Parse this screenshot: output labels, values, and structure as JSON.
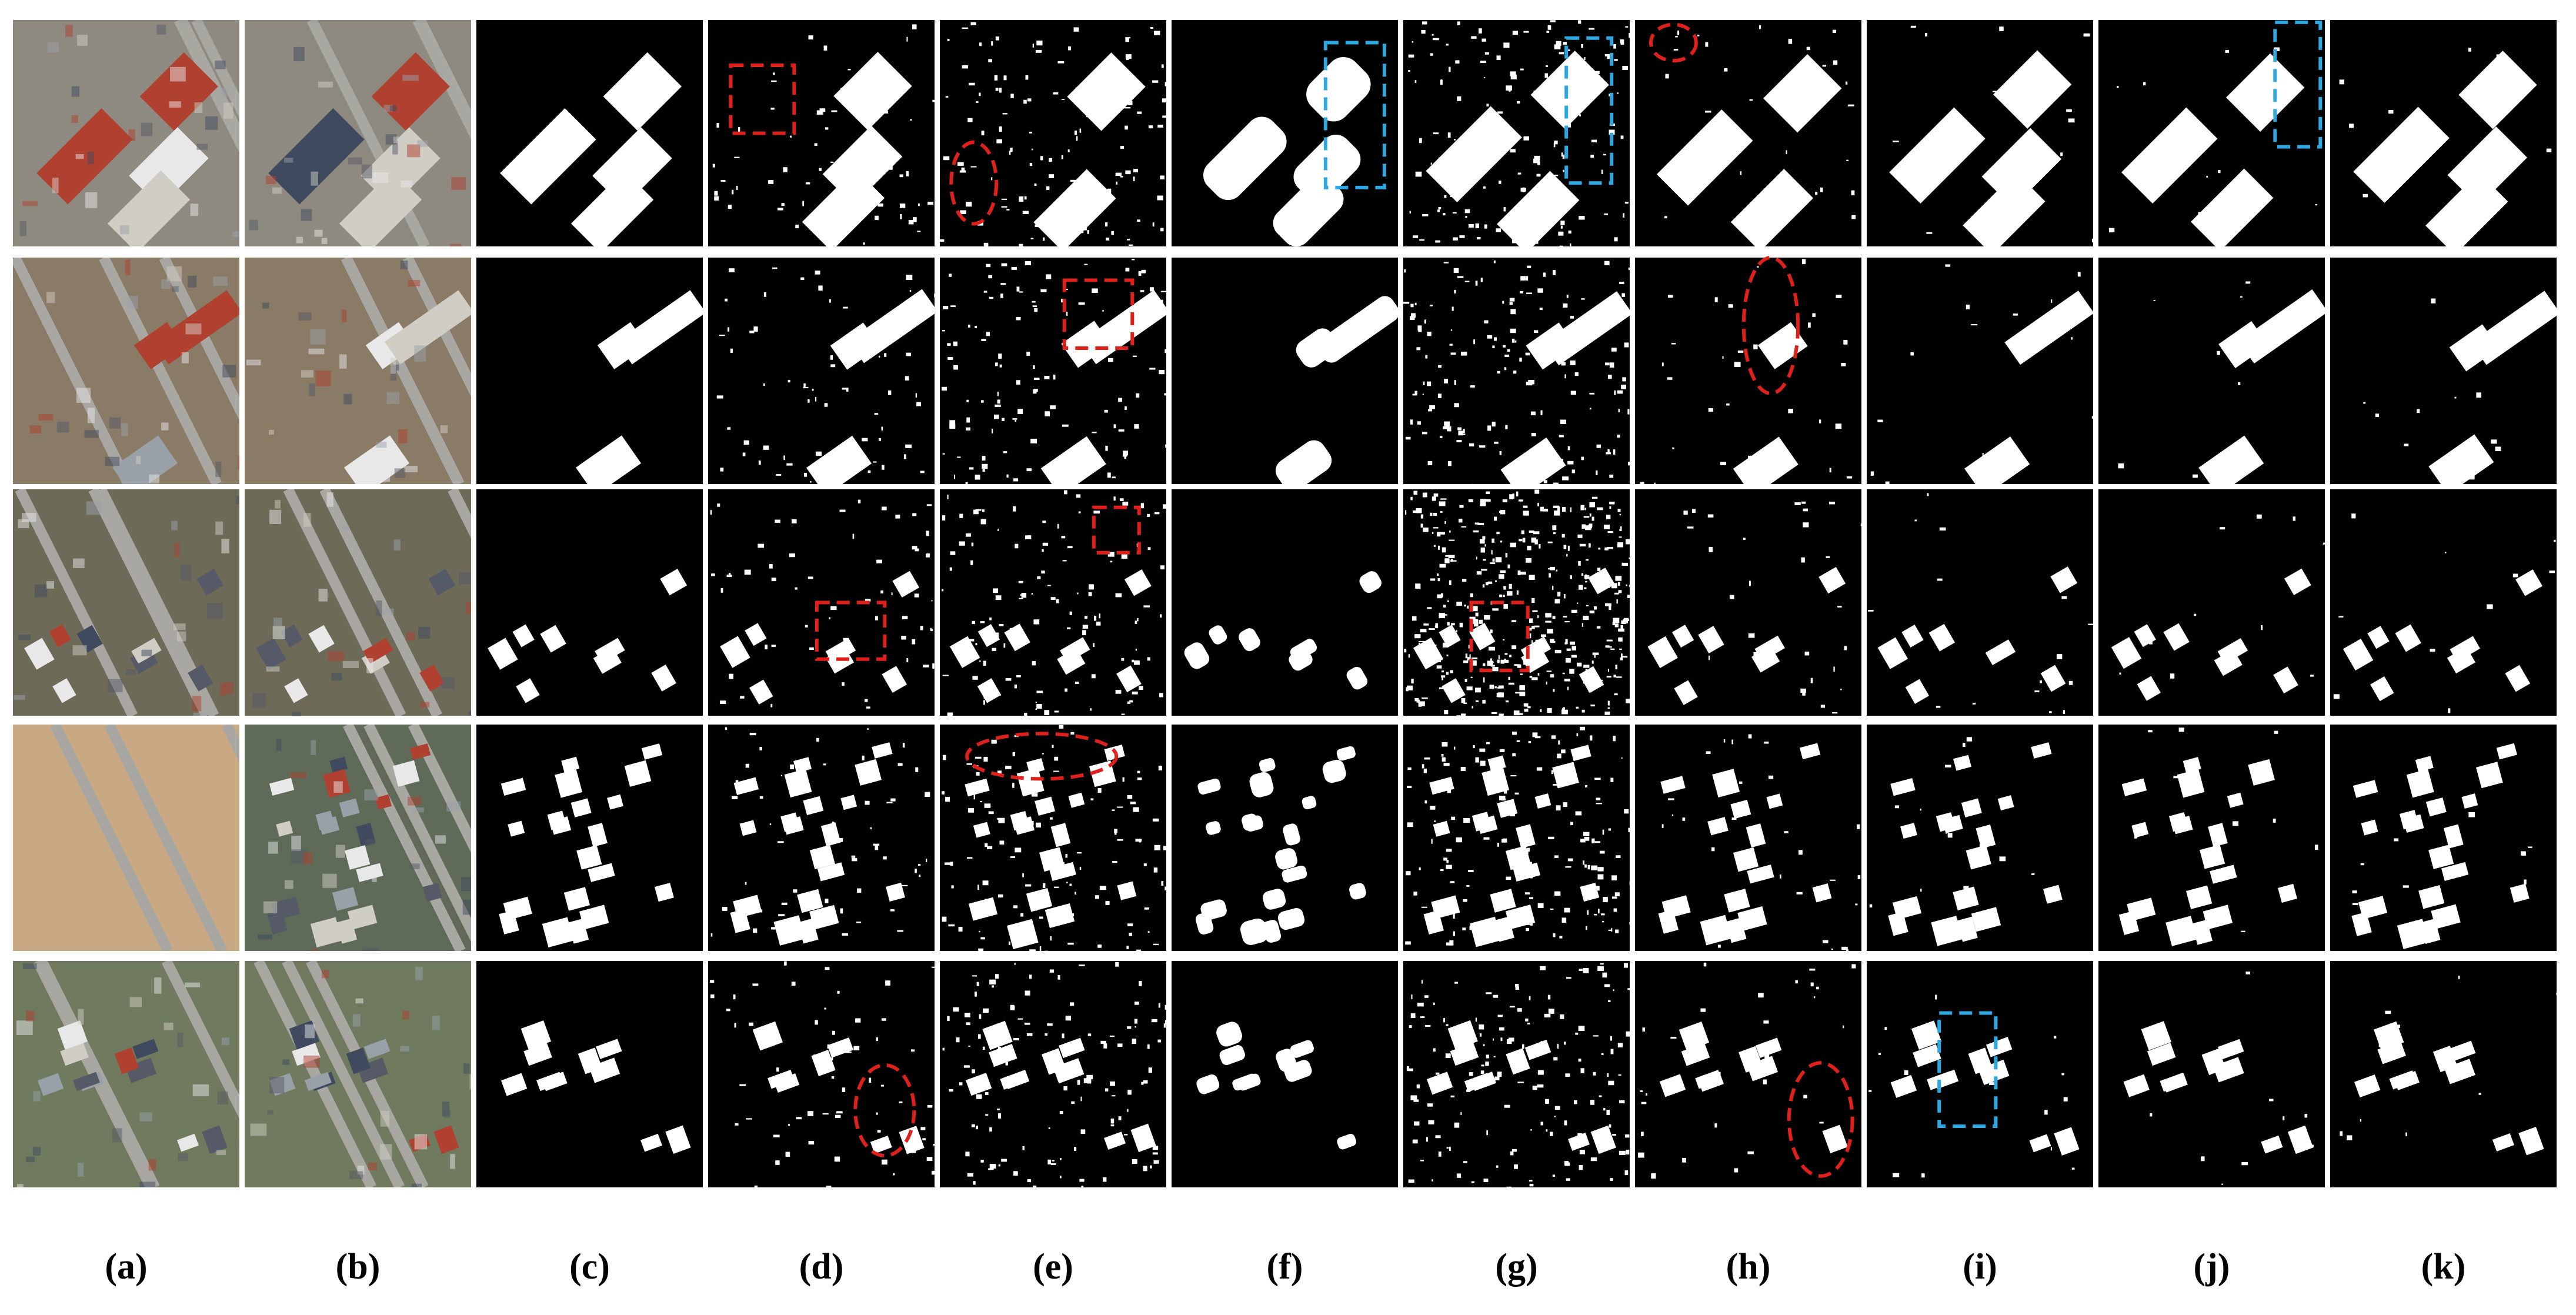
{
  "panel_labels": [
    "(a)",
    "(b)",
    "(c)",
    "(d)",
    "(e)",
    "(f)",
    "(g)",
    "(h)",
    "(i)",
    "(j)",
    "(k)"
  ]
}
